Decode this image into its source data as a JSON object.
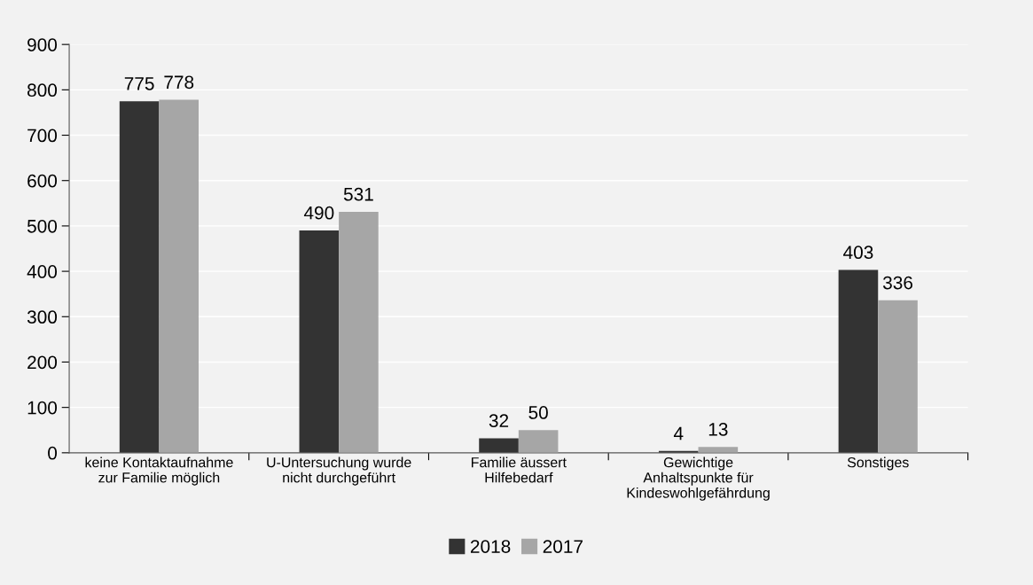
{
  "chart_data": {
    "type": "bar",
    "categories": [
      "keine Kontaktaufnahme\nzur Familie möglich",
      "U-Untersuchung wurde\nnicht durchgeführt",
      "Familie äussert\nHilfebedarf",
      "Gewichtige\nAnhaltspunkte für\nKindeswohlgefährdung",
      "Sonstiges"
    ],
    "series": [
      {
        "name": "2018",
        "color": "#333333",
        "values": [
          775,
          490,
          32,
          4,
          403
        ]
      },
      {
        "name": "2017",
        "color": "#a6a6a6",
        "values": [
          778,
          531,
          50,
          13,
          336
        ]
      }
    ],
    "ylim": [
      0,
      900
    ],
    "yticks": [
      0,
      100,
      200,
      300,
      400,
      500,
      600,
      700,
      800,
      900
    ],
    "grid": "y",
    "legend": "bottom",
    "data_labels": true
  }
}
